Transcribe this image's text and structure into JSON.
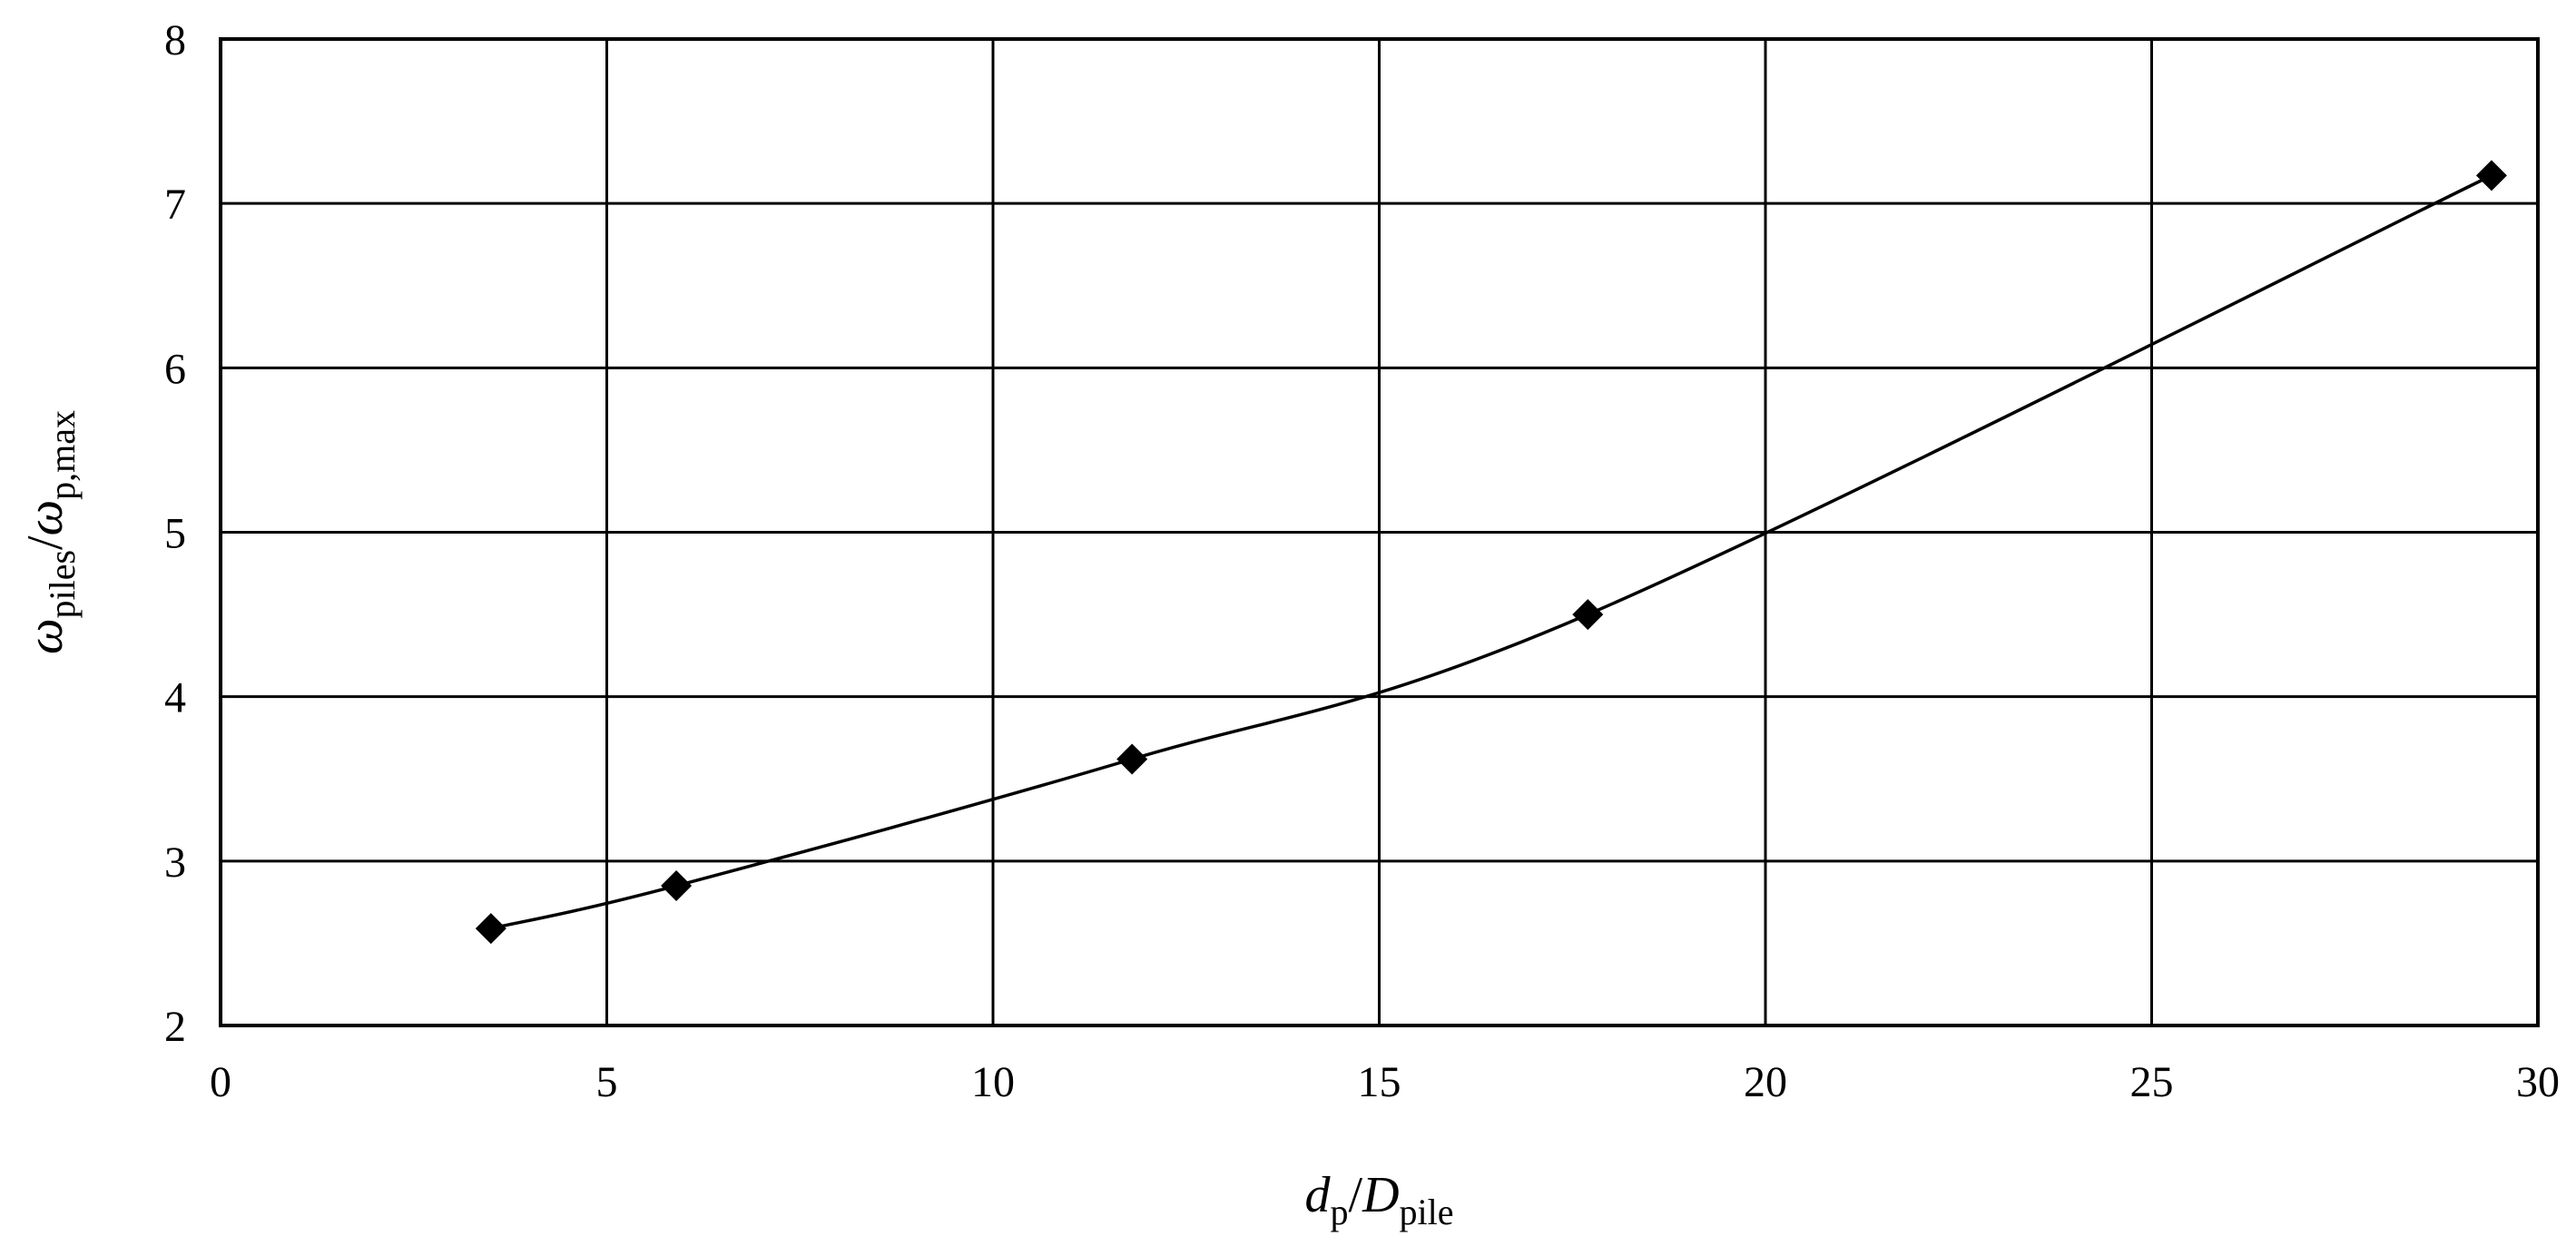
{
  "chart_data": {
    "type": "line",
    "xlabel": {
      "main": "d",
      "main_sub": "p",
      "sep": "/",
      "den": "D",
      "den_sub": "pile"
    },
    "ylabel": {
      "main": "ω",
      "main_sub": "piles",
      "sep": "/",
      "den": "ω",
      "den_sub": "p,max"
    },
    "xlim": [
      0,
      30
    ],
    "ylim": [
      2,
      8
    ],
    "xticks": [
      0,
      5,
      10,
      15,
      20,
      25,
      30
    ],
    "yticks": [
      2,
      3,
      4,
      5,
      6,
      7,
      8
    ],
    "grid": true,
    "series": [
      {
        "marker": "diamond",
        "color": "#000000",
        "x": [
          3.5,
          5.9,
          11.8,
          17.7,
          29.4
        ],
        "y": [
          2.59,
          2.85,
          3.62,
          4.5,
          7.17
        ]
      }
    ]
  }
}
